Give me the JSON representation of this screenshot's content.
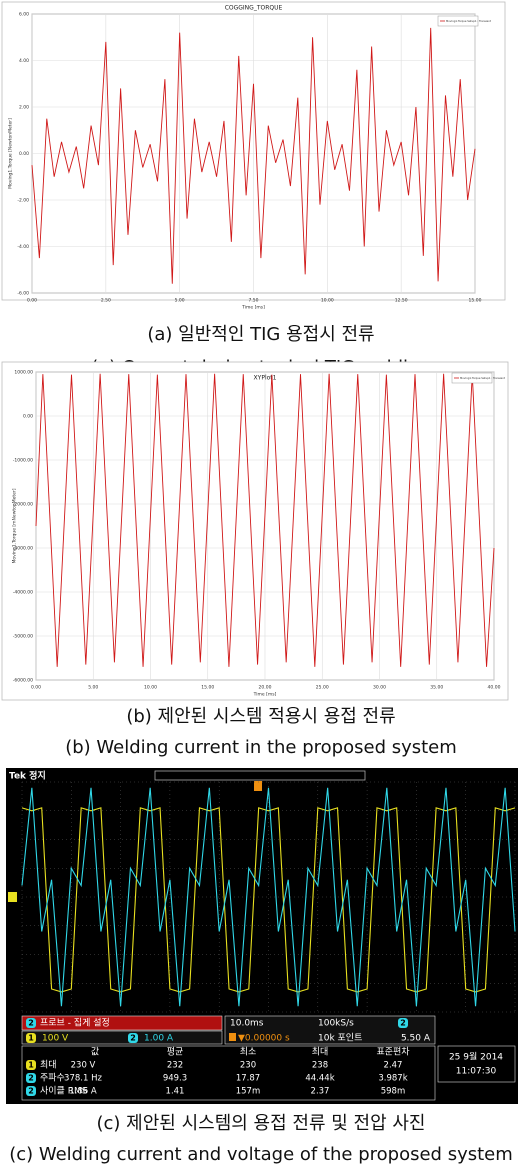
{
  "chart_data": [
    {
      "type": "line",
      "title": "COGGING_TORQUE",
      "x_label": "Time [ms]",
      "y_label": "Moving1.Torque [NewtonMeter]",
      "xlim": [
        0,
        15
      ],
      "ylim": [
        -6,
        6
      ],
      "xticks": [
        {
          "value": 0,
          "label": "0.00"
        },
        {
          "value": 2.5,
          "label": "2.50"
        },
        {
          "value": 5,
          "label": "5.00"
        },
        {
          "value": 7.5,
          "label": "7.50"
        },
        {
          "value": 10,
          "label": "10.00"
        },
        {
          "value": 12.5,
          "label": "12.50"
        },
        {
          "value": 15,
          "label": "15.00"
        }
      ],
      "yticks": [
        {
          "value": 6,
          "label": "6.00"
        },
        {
          "value": 4,
          "label": "4.00"
        },
        {
          "value": 2,
          "label": "2.00"
        },
        {
          "value": 0,
          "label": "0.00"
        },
        {
          "value": -2,
          "label": "-2.00"
        },
        {
          "value": -4,
          "label": "-4.00"
        },
        {
          "value": -6,
          "label": "-6.00"
        }
      ],
      "grid": true,
      "x": [
        0,
        0.25,
        0.5,
        0.75,
        1,
        1.25,
        1.5,
        1.75,
        2,
        2.25,
        2.5,
        2.75,
        3,
        3.25,
        3.5,
        3.75,
        4,
        4.25,
        4.5,
        4.75,
        5,
        5.25,
        5.5,
        5.75,
        6,
        6.25,
        6.5,
        6.75,
        7,
        7.25,
        7.5,
        7.75,
        8,
        8.25,
        8.5,
        8.75,
        9,
        9.25,
        9.5,
        9.75,
        10,
        10.25,
        10.5,
        10.75,
        11,
        11.25,
        11.5,
        11.75,
        12,
        12.25,
        12.5,
        12.75,
        13,
        13.25,
        13.5,
        13.75,
        14,
        14.25,
        14.5,
        14.75,
        15
      ],
      "series": [
        {
          "name": "Moving1.Torque Setup1 : Transient",
          "color": "#d01818",
          "values": [
            -0.5,
            -4.5,
            1.5,
            -1.0,
            0.5,
            -0.8,
            0.3,
            -1.5,
            1.2,
            -0.5,
            4.8,
            -4.8,
            2.8,
            -3.5,
            1.0,
            -0.6,
            0.4,
            -1.2,
            3.2,
            -5.6,
            5.2,
            -2.8,
            1.5,
            -0.8,
            0.5,
            -1.0,
            1.4,
            -3.8,
            4.2,
            -1.8,
            3.0,
            -4.5,
            1.2,
            -0.4,
            0.6,
            -1.4,
            2.4,
            -5.2,
            5.0,
            -2.2,
            1.4,
            -0.7,
            0.4,
            -1.6,
            3.6,
            -4.0,
            4.6,
            -2.5,
            1.0,
            -0.5,
            0.5,
            -1.8,
            2.0,
            -4.4,
            5.4,
            -5.5,
            2.5,
            -1.0,
            3.2,
            -2.0,
            0.2
          ]
        }
      ],
      "caption_ko": "(a) 일반적인 TIG 용접시 전류",
      "caption_en": "(a) Current during typical TIG welding"
    },
    {
      "type": "line",
      "title": "XYPlot1",
      "x_label": "Time [ms]",
      "y_label": "Moving1.Torque [mNewtonMeter]",
      "xlim": [
        0,
        40
      ],
      "ylim": [
        -6000,
        1000
      ],
      "xticks": [
        {
          "value": 0,
          "label": "0.00"
        },
        {
          "value": 5,
          "label": "5.00"
        },
        {
          "value": 10,
          "label": "10.00"
        },
        {
          "value": 15,
          "label": "15.00"
        },
        {
          "value": 20,
          "label": "20.00"
        },
        {
          "value": 25,
          "label": "25.00"
        },
        {
          "value": 30,
          "label": "30.00"
        },
        {
          "value": 35,
          "label": "35.00"
        },
        {
          "value": 40,
          "label": "40.00"
        }
      ],
      "yticks": [
        {
          "value": 1000,
          "label": "1000.00"
        },
        {
          "value": 0,
          "label": "0.00"
        },
        {
          "value": -1000,
          "label": "-1000.00"
        },
        {
          "value": -2000,
          "label": "-2000.00"
        },
        {
          "value": -3000,
          "label": "-3000.00"
        },
        {
          "value": -4000,
          "label": "-4000.00"
        },
        {
          "value": -5000,
          "label": "-5000.00"
        },
        {
          "value": -6000,
          "label": "-6000.00"
        }
      ],
      "grid": true,
      "x": [
        0,
        0.6,
        1.85,
        3.1,
        4.35,
        5.6,
        6.85,
        8.1,
        9.35,
        10.6,
        11.85,
        13.1,
        14.35,
        15.6,
        16.85,
        18.1,
        19.35,
        20.6,
        21.85,
        23.1,
        24.35,
        25.6,
        26.85,
        28.1,
        29.35,
        30.6,
        31.85,
        33.1,
        34.35,
        35.6,
        36.85,
        38.1,
        39.35,
        40
      ],
      "series": [
        {
          "name": "Moving1.Torque Setup1 : Transient",
          "color": "#d01818",
          "values": [
            -2500,
            950,
            -5700,
            940,
            -5650,
            960,
            -5600,
            950,
            -5700,
            940,
            -5650,
            950,
            -5600,
            960,
            -5700,
            950,
            -5650,
            940,
            -5600,
            950,
            -5700,
            960,
            -5650,
            950,
            -5600,
            940,
            -5700,
            950,
            -5650,
            960,
            -5600,
            950,
            -5700,
            -3000
          ]
        }
      ],
      "caption_ko": "(b) 제안된 시스템 적용시 용접 전류",
      "caption_en": "(b) Welding current in the proposed system"
    },
    {
      "type": "oscilloscope",
      "status": "Tek 정지",
      "xlim": [
        0,
        10
      ],
      "ylim": [
        -4,
        4
      ],
      "x": [
        0,
        0.2,
        0.4,
        0.6,
        0.8,
        1,
        1.2,
        1.4,
        1.6,
        1.8,
        2,
        2.2,
        2.4,
        2.6,
        2.8,
        3,
        3.2,
        3.4,
        3.6,
        3.8,
        4,
        4.2,
        4.4,
        4.6,
        4.8,
        5,
        5.2,
        5.4,
        5.6,
        5.8,
        6,
        6.2,
        6.4,
        6.6,
        6.8,
        7,
        7.2,
        7.4,
        7.6,
        7.8,
        8,
        8.2,
        8.4,
        8.6,
        8.8,
        9,
        9.2,
        9.4,
        9.6,
        9.8,
        10
      ],
      "series": [
        {
          "color": "#e8e020",
          "values": [
            3.1,
            3.0,
            3.1,
            -3.2,
            -3.3,
            -3.2,
            3.1,
            3.0,
            3.1,
            -3.2,
            -3.3,
            -3.2,
            3.1,
            3.0,
            3.1,
            -3.2,
            -3.3,
            -3.2,
            3.1,
            3.0,
            3.1,
            -3.2,
            -3.3,
            -3.2,
            3.1,
            3.0,
            3.1,
            -3.2,
            -3.3,
            -3.2,
            3.1,
            3.0,
            3.1,
            -3.2,
            -3.3,
            -3.2,
            3.1,
            3.0,
            3.1,
            -3.2,
            -3.3,
            -3.2,
            3.1,
            3.0,
            3.1,
            -3.2,
            -3.3,
            -3.2,
            3.1,
            3.0,
            3.1
          ]
        },
        {
          "color": "#30d8e8",
          "values": [
            0.4,
            3.8,
            -1.2,
            0.6,
            -3.8,
            1.0,
            0.4,
            3.8,
            -1.2,
            0.6,
            -3.8,
            1.0,
            0.4,
            3.8,
            -1.2,
            0.6,
            -3.8,
            1.0,
            0.4,
            3.8,
            -1.2,
            0.6,
            -3.8,
            1.0,
            0.4,
            3.8,
            -1.2,
            0.6,
            -3.8,
            1.0,
            0.4,
            3.8,
            -1.2,
            0.6,
            -3.8,
            1.0,
            0.4,
            3.8,
            -1.2,
            0.6,
            -3.8,
            1.0,
            0.4,
            3.8,
            -1.2,
            0.6,
            -3.8,
            1.0,
            0.4,
            3.8,
            -1.2
          ]
        }
      ],
      "probe_menu": "프로브 - 집게 설정",
      "ch1_label": "1",
      "ch1_scale": "100 V",
      "ch2_label": "2",
      "ch2_scale": "1.00 A",
      "timebase": "10.0ms",
      "sample_rate": "100kS/s",
      "trigger_position": "▼0.00000 s",
      "record_length": "10k 포인트",
      "trigger_level": "5.50 A",
      "measure_header": [
        "값",
        "평균",
        "최소",
        "최대",
        "표준편차"
      ],
      "measure_rows": [
        {
          "channel": "1",
          "label": "최대",
          "cells": [
            "230 V",
            "232",
            "230",
            "238",
            "2.47"
          ]
        },
        {
          "channel": "2",
          "label": "주파수",
          "cells": [
            "378.1 Hz",
            "949.3",
            "17.87",
            "44.44k",
            "3.987k"
          ]
        },
        {
          "channel": "2",
          "label": "사이클 RMS",
          "cells": [
            "1.86 A",
            "1.41",
            "157m",
            "2.37",
            "598m"
          ]
        }
      ],
      "date": "25 9월 2014",
      "time": "11:07:30",
      "caption_ko": "(c) 제안된 시스템의 용접 전류 및 전압 사진",
      "caption_en": "(c) Welding current and voltage of the proposed system"
    }
  ]
}
